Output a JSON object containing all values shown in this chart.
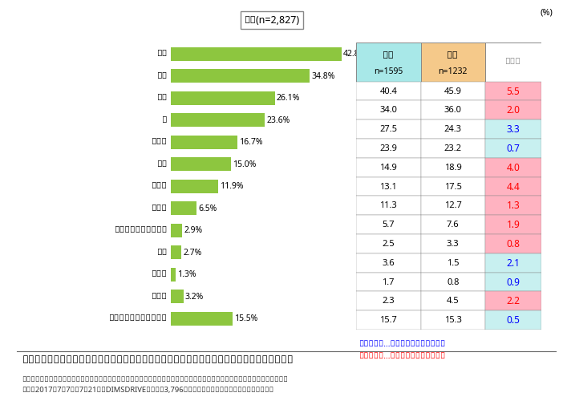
{
  "title_box": "全体(n=2,827)",
  "percent_label": "(%)",
  "categories": [
    "台所",
    "居間",
    "寳室",
    "庭",
    "風呂場",
    "玄関",
    "洗面所",
    "トイレ",
    "クローゼット・押入れ",
    "床下",
    "屋根裏",
    "その他",
    "特に決まった場所はない"
  ],
  "values": [
    42.8,
    34.8,
    26.1,
    23.6,
    16.7,
    15.0,
    11.9,
    6.5,
    2.9,
    2.7,
    1.3,
    3.2,
    15.5
  ],
  "male_values": [
    40.4,
    34.0,
    27.5,
    23.9,
    14.9,
    13.1,
    11.3,
    5.7,
    2.5,
    3.6,
    1.7,
    2.3,
    15.7
  ],
  "female_values": [
    45.9,
    36.0,
    24.3,
    23.2,
    18.9,
    17.5,
    12.7,
    7.6,
    3.3,
    1.5,
    0.8,
    4.5,
    15.3
  ],
  "diff_values": [
    5.5,
    2.0,
    3.3,
    0.7,
    4.0,
    4.4,
    1.3,
    1.9,
    0.8,
    2.1,
    0.9,
    2.2,
    0.5
  ],
  "diff_colors": [
    "#FFB3C1",
    "#FFB3C1",
    "#C8F0F0",
    "#C8F0F0",
    "#FFB3C1",
    "#FFB3C1",
    "#FFB3C1",
    "#FFB3C1",
    "#FFB3C1",
    "#C8F0F0",
    "#C8F0F0",
    "#FFB3C1",
    "#C8F0F0"
  ],
  "diff_text_colors": [
    "red",
    "red",
    "blue",
    "blue",
    "red",
    "red",
    "red",
    "red",
    "red",
    "blue",
    "blue",
    "red",
    "blue"
  ],
  "bar_color": "#8DC63F",
  "male_header_color": "#A8E8E8",
  "female_header_color": "#F5C98A",
  "male_label": "男性",
  "female_label": "女性",
  "male_n": "n=1595",
  "female_n": "n=1232",
  "diff_label": "男女差",
  "max_value": 45,
  "note1": "男女差青字…男性のほうが数値が高い",
  "note2": "男女差赤字…女性のほうが数値が高い",
  "footer1": "調査機関：インターワイヤード株式会社が運営するネットリサーチ『ＤＩＭＳＤＲＩＶＥ』実施のアンケート「害虹・害獣対策」。",
  "footer2": "期間：2017年7月7日～7月21日、DIMSDRIVEモニター3,796人が回答。エピソードも同アンケートです。",
  "table_title": "表２　「家の中で害虹に困ったり悩んだりすることが多い場所はどこですか」　についての回答",
  "bg_color": "#FFFFFF"
}
